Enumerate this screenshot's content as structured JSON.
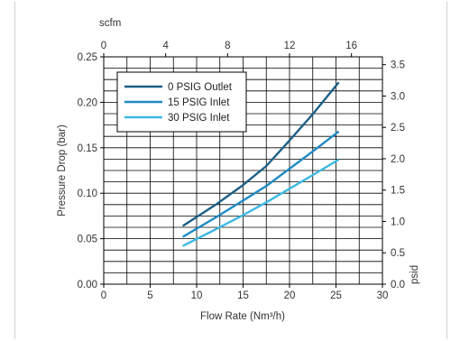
{
  "chart_data": {
    "type": "line",
    "xlabel": "Flow Rate (Nm³/h)",
    "ylabel": "Pressure Drop (bar)",
    "x2label": "scfm",
    "y2label": "psid",
    "xlim": [
      0,
      30
    ],
    "ylim": [
      0,
      0.25
    ],
    "x2lim": [
      0,
      18
    ],
    "y2lim": [
      0,
      3.625
    ],
    "xticks": [
      "0",
      "5",
      "10",
      "15",
      "20",
      "25",
      "30"
    ],
    "yticks": [
      "0.00",
      "0.05",
      "0.10",
      "0.15",
      "0.20",
      "0.25"
    ],
    "x2ticks": [
      "0",
      "4",
      "8",
      "12",
      "16"
    ],
    "y2ticks": [
      "0.0",
      "0.5",
      "1.0",
      "1.5",
      "2.0",
      "2.5",
      "3.0",
      "3.5"
    ],
    "grid": true,
    "legend_position": "top-left",
    "series": [
      {
        "name": "0 PSIG Outlet",
        "color": "#1c5f86",
        "x": [
          8.5,
          12,
          15,
          17.5,
          20,
          22.5,
          25.3
        ],
        "y": [
          0.064,
          0.087,
          0.109,
          0.13,
          0.158,
          0.187,
          0.222
        ]
      },
      {
        "name": "15 PSIG Inlet",
        "color": "#1e8ac4",
        "x": [
          8.5,
          12,
          15,
          17.5,
          20,
          22.5,
          25.3
        ],
        "y": [
          0.052,
          0.073,
          0.092,
          0.108,
          0.127,
          0.146,
          0.168
        ]
      },
      {
        "name": "30 PSIG Inlet",
        "color": "#3cb9e2",
        "x": [
          8.5,
          12,
          15,
          17.5,
          20,
          22.5,
          25.3
        ],
        "y": [
          0.042,
          0.06,
          0.076,
          0.09,
          0.105,
          0.12,
          0.137
        ]
      }
    ]
  }
}
